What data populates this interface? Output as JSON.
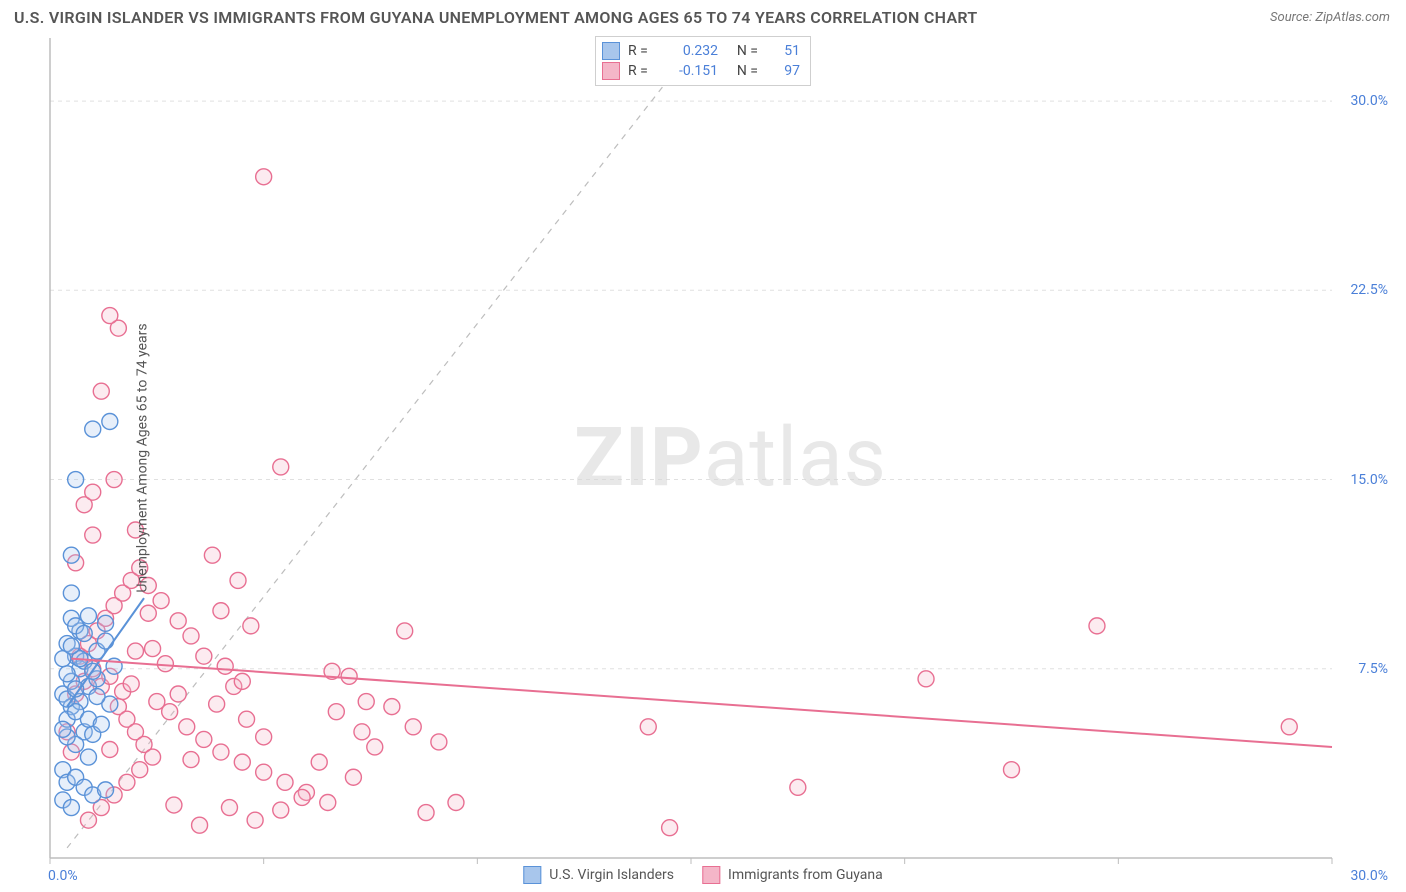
{
  "header": {
    "title": "U.S. VIRGIN ISLANDER VS IMMIGRANTS FROM GUYANA UNEMPLOYMENT AMONG AGES 65 TO 74 YEARS CORRELATION CHART",
    "source": "Source: ZipAtlas.com"
  },
  "watermark": {
    "part1": "ZIP",
    "part2": "atlas"
  },
  "chart": {
    "type": "scatter",
    "ylabel": "Unemployment Among Ages 65 to 74 years",
    "xlim": [
      0,
      30
    ],
    "ylim": [
      0,
      32.5
    ],
    "xtick_labels": [
      "0.0%",
      "30.0%"
    ],
    "ytick_positions": [
      7.5,
      15.0,
      22.5,
      30.0
    ],
    "ytick_labels": [
      "7.5%",
      "15.0%",
      "22.5%",
      "30.0%"
    ],
    "grid_color": "#e0e0e0",
    "axis_color": "#bdbdbd",
    "ref_line_color": "#bdbdbd",
    "ref_line_dash": "6,6",
    "marker_radius": 8,
    "marker_stroke_width": 1.4,
    "fill_opacity": 0.28,
    "series": [
      {
        "name": "U.S. Virgin Islanders",
        "color_stroke": "#5a92d8",
        "color_fill": "#a8c6ec",
        "R": "0.232",
        "N": "51",
        "trend": {
          "x1": 0.4,
          "y1": 6.0,
          "x2": 2.2,
          "y2": 10.3,
          "width": 2.0
        },
        "points": [
          [
            0.3,
            6.5
          ],
          [
            0.5,
            7.0
          ],
          [
            0.6,
            8.0
          ],
          [
            0.4,
            8.5
          ],
          [
            0.7,
            7.5
          ],
          [
            0.5,
            6.0
          ],
          [
            0.8,
            5.0
          ],
          [
            0.6,
            4.5
          ],
          [
            0.9,
            4.0
          ],
          [
            0.4,
            5.5
          ],
          [
            0.7,
            9.0
          ],
          [
            0.5,
            9.5
          ],
          [
            0.3,
            3.5
          ],
          [
            0.4,
            3.0
          ],
          [
            0.6,
            3.2
          ],
          [
            0.8,
            2.8
          ],
          [
            1.0,
            2.5
          ],
          [
            1.3,
            2.7
          ],
          [
            0.5,
            12.0
          ],
          [
            0.6,
            15.0
          ],
          [
            1.0,
            17.0
          ],
          [
            1.4,
            17.3
          ],
          [
            1.1,
            8.2
          ],
          [
            1.3,
            8.6
          ],
          [
            0.7,
            6.2
          ],
          [
            0.9,
            6.8
          ],
          [
            1.1,
            7.1
          ],
          [
            0.8,
            7.8
          ],
          [
            0.4,
            7.3
          ],
          [
            0.3,
            7.9
          ],
          [
            0.5,
            10.5
          ],
          [
            0.6,
            9.2
          ],
          [
            0.9,
            9.6
          ],
          [
            0.4,
            4.8
          ],
          [
            0.3,
            5.1
          ],
          [
            0.6,
            5.8
          ],
          [
            0.7,
            7.9
          ],
          [
            0.5,
            8.4
          ],
          [
            0.8,
            8.9
          ],
          [
            0.4,
            6.3
          ],
          [
            0.6,
            6.7
          ],
          [
            0.9,
            5.5
          ],
          [
            1.0,
            4.9
          ],
          [
            1.2,
            5.3
          ],
          [
            1.4,
            6.1
          ],
          [
            0.3,
            2.3
          ],
          [
            0.5,
            2.0
          ],
          [
            1.1,
            6.4
          ],
          [
            1.0,
            7.4
          ],
          [
            1.5,
            7.6
          ],
          [
            1.3,
            9.3
          ]
        ]
      },
      {
        "name": "Immigrants from Guyana",
        "color_stroke": "#e86f92",
        "color_fill": "#f4b6c8",
        "R": "-0.151",
        "N": "97",
        "trend": {
          "x1": 0.5,
          "y1": 7.9,
          "x2": 30.0,
          "y2": 4.4,
          "width": 2.0
        },
        "points": [
          [
            0.6,
            6.5
          ],
          [
            0.8,
            7.0
          ],
          [
            1.0,
            7.5
          ],
          [
            1.2,
            6.8
          ],
          [
            1.4,
            7.2
          ],
          [
            1.6,
            6.0
          ],
          [
            1.8,
            5.5
          ],
          [
            2.0,
            5.0
          ],
          [
            2.2,
            4.5
          ],
          [
            2.4,
            4.0
          ],
          [
            0.7,
            8.0
          ],
          [
            0.9,
            8.5
          ],
          [
            1.1,
            9.0
          ],
          [
            1.3,
            9.5
          ],
          [
            1.5,
            10.0
          ],
          [
            1.7,
            10.5
          ],
          [
            1.9,
            11.0
          ],
          [
            2.1,
            11.5
          ],
          [
            0.8,
            14.0
          ],
          [
            1.0,
            14.5
          ],
          [
            1.5,
            15.0
          ],
          [
            1.2,
            18.5
          ],
          [
            1.6,
            21.0
          ],
          [
            1.4,
            21.5
          ],
          [
            2.0,
            13.0
          ],
          [
            2.3,
            10.8
          ],
          [
            2.6,
            10.2
          ],
          [
            3.0,
            9.4
          ],
          [
            3.3,
            8.8
          ],
          [
            3.6,
            8.0
          ],
          [
            4.0,
            9.8
          ],
          [
            4.3,
            6.8
          ],
          [
            4.6,
            5.5
          ],
          [
            5.0,
            4.8
          ],
          [
            5.4,
            15.5
          ],
          [
            5.0,
            27.0
          ],
          [
            2.5,
            6.2
          ],
          [
            2.8,
            5.8
          ],
          [
            3.2,
            5.2
          ],
          [
            3.6,
            4.7
          ],
          [
            4.0,
            4.2
          ],
          [
            4.5,
            3.8
          ],
          [
            5.0,
            3.4
          ],
          [
            5.5,
            3.0
          ],
          [
            6.0,
            2.6
          ],
          [
            6.5,
            2.2
          ],
          [
            7.0,
            7.2
          ],
          [
            7.3,
            5.0
          ],
          [
            7.6,
            4.4
          ],
          [
            8.0,
            6.0
          ],
          [
            8.3,
            9.0
          ],
          [
            8.5,
            5.2
          ],
          [
            8.8,
            1.8
          ],
          [
            9.1,
            4.6
          ],
          [
            9.5,
            2.2
          ],
          [
            4.2,
            2.0
          ],
          [
            4.8,
            1.5
          ],
          [
            5.4,
            1.9
          ],
          [
            5.9,
            2.4
          ],
          [
            6.3,
            3.8
          ],
          [
            6.7,
            5.8
          ],
          [
            7.1,
            3.2
          ],
          [
            2.9,
            2.1
          ],
          [
            3.5,
            1.3
          ],
          [
            4.1,
            7.6
          ],
          [
            4.7,
            9.2
          ],
          [
            3.8,
            12.0
          ],
          [
            4.4,
            11.0
          ],
          [
            3.0,
            6.5
          ],
          [
            2.7,
            7.7
          ],
          [
            2.4,
            8.3
          ],
          [
            2.1,
            3.5
          ],
          [
            1.8,
            3.0
          ],
          [
            1.5,
            2.5
          ],
          [
            1.2,
            2.0
          ],
          [
            0.9,
            1.5
          ],
          [
            3.3,
            3.9
          ],
          [
            3.9,
            6.1
          ],
          [
            4.5,
            7.0
          ],
          [
            14.0,
            5.2
          ],
          [
            14.5,
            1.2
          ],
          [
            17.5,
            2.8
          ],
          [
            20.5,
            7.1
          ],
          [
            22.5,
            3.5
          ],
          [
            24.5,
            9.2
          ],
          [
            29.0,
            5.2
          ],
          [
            6.6,
            7.4
          ],
          [
            7.4,
            6.2
          ],
          [
            1.7,
            6.6
          ],
          [
            2.3,
            9.7
          ],
          [
            0.5,
            4.2
          ],
          [
            0.4,
            5.0
          ],
          [
            0.6,
            11.7
          ],
          [
            1.0,
            12.8
          ],
          [
            2.0,
            8.2
          ],
          [
            1.4,
            4.3
          ],
          [
            1.9,
            6.9
          ]
        ]
      }
    ]
  },
  "bottom_legend": {
    "a": "U.S. Virgin Islanders",
    "b": "Immigrants from Guyana"
  }
}
